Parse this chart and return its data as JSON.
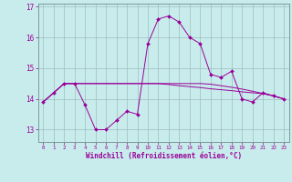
{
  "xlabel": "Windchill (Refroidissement éolien,°C)",
  "background_color": "#c8ecec",
  "grid_color": "#b0c8c8",
  "line_color": "#990099",
  "ylim_min": 12.6,
  "ylim_max": 17.1,
  "xlim_min": -0.5,
  "xlim_max": 23.5,
  "wc_y": [
    13.9,
    14.2,
    14.5,
    14.5,
    13.8,
    13.0,
    13.0,
    13.3,
    13.6,
    13.5,
    15.8,
    16.6,
    16.7,
    16.5,
    16.0,
    15.8,
    14.8,
    14.7,
    14.9,
    14.0,
    13.9,
    14.2,
    14.1,
    14.0
  ],
  "t1_y": [
    13.9,
    14.2,
    14.5,
    14.5,
    14.5,
    14.5,
    14.5,
    14.5,
    14.5,
    14.5,
    14.5,
    14.5,
    14.47,
    14.43,
    14.4,
    14.37,
    14.33,
    14.3,
    14.27,
    14.23,
    14.2,
    14.17,
    14.1,
    14.0
  ],
  "t2_y": [
    13.9,
    14.2,
    14.5,
    14.5,
    14.5,
    14.5,
    14.5,
    14.5,
    14.5,
    14.5,
    14.5,
    14.5,
    14.5,
    14.5,
    14.5,
    14.5,
    14.48,
    14.43,
    14.38,
    14.32,
    14.25,
    14.18,
    14.1,
    14.0
  ],
  "yticks": [
    13,
    14,
    15,
    16,
    17
  ],
  "xticks": [
    0,
    1,
    2,
    3,
    4,
    5,
    6,
    7,
    8,
    9,
    10,
    11,
    12,
    13,
    14,
    15,
    16,
    17,
    18,
    19,
    20,
    21,
    22,
    23
  ]
}
